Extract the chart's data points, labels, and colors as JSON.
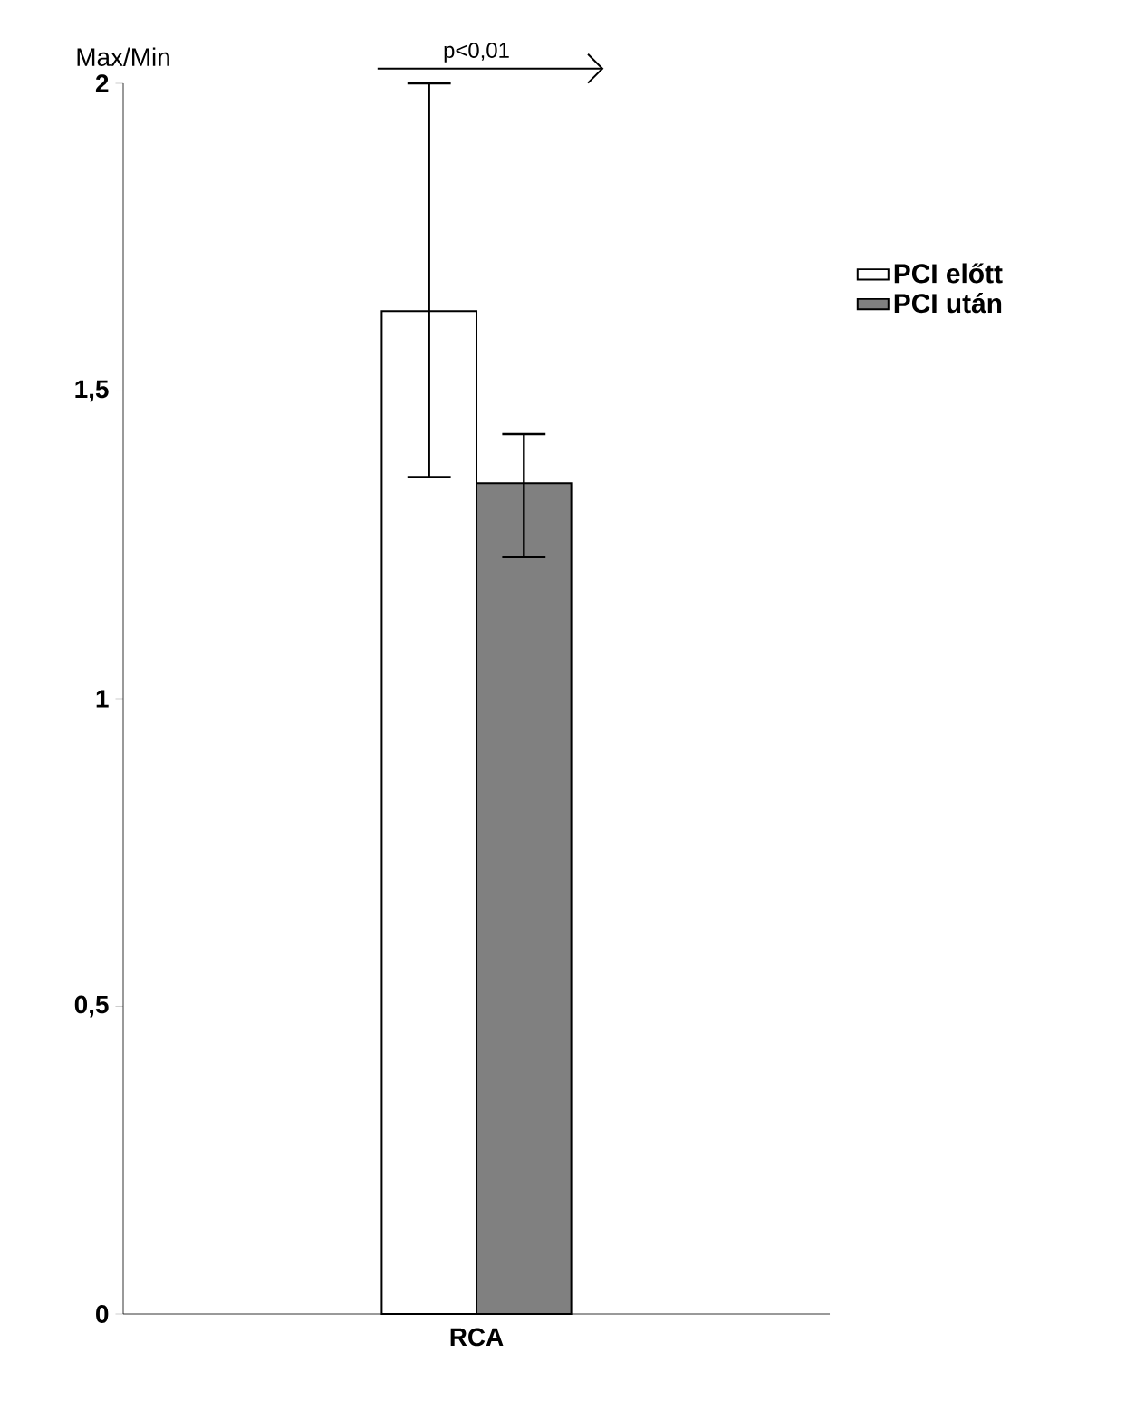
{
  "chart_data": {
    "type": "bar",
    "ylabel": "Max/Min",
    "categories": [
      "RCA"
    ],
    "series": [
      {
        "name": "PCI előtt",
        "color": "#ffffff",
        "values": [
          1.63
        ],
        "errors": [
          [
            1.36,
            2.0
          ]
        ]
      },
      {
        "name": "PCI után",
        "color": "#808080",
        "values": [
          1.35
        ],
        "errors": [
          [
            1.23,
            1.43
          ]
        ]
      }
    ],
    "ylim": [
      0,
      2
    ],
    "yticks": [
      0,
      {
        "value": 0.5,
        "label": "0,5"
      },
      1,
      {
        "value": 1.5,
        "label": "1,5"
      },
      2
    ],
    "legend": "right",
    "annotations": [
      "p<0,01"
    ]
  }
}
